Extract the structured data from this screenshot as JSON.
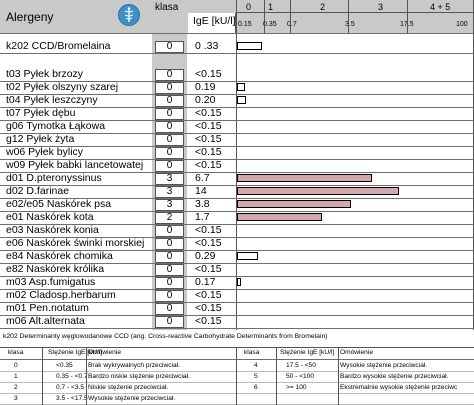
{
  "header": {
    "allergens_label": "Alergeny",
    "klasa_label": "klasa",
    "ige_label": "IgE [kU/l]",
    "class_numbers": [
      "0",
      "1",
      "2",
      "3",
      "4 + 5"
    ],
    "scale_ticks": [
      "0.15",
      "0.35",
      "0.7",
      "3.5",
      "17.5",
      "100"
    ]
  },
  "rows": [
    {
      "name": "k202  CCD/Bromelaina",
      "klasa": "0",
      "value": "0 .33",
      "level": 0.33,
      "highlight": false
    },
    {
      "name": "t03  Pyłek brzozy",
      "klasa": "0",
      "value": "<0.15",
      "level": 0,
      "highlight": false
    },
    {
      "name": "t02  Pyłek olszyny szarej",
      "klasa": "0",
      "value": "0.19",
      "level": 0.19,
      "highlight": false
    },
    {
      "name": "t04  Pyłek leszczyny",
      "klasa": "0",
      "value": "0.20",
      "level": 0.2,
      "highlight": false
    },
    {
      "name": "t07  Pyłek dębu",
      "klasa": "0",
      "value": "<0.15",
      "level": 0,
      "highlight": false
    },
    {
      "name": "g06  Tymotka Łąkowa",
      "klasa": "0",
      "value": "<0.15",
      "level": 0,
      "highlight": false
    },
    {
      "name": "g12  Pyłek żyta",
      "klasa": "0",
      "value": "<0.15",
      "level": 0,
      "highlight": false
    },
    {
      "name": "w06  Pyłek bylicy",
      "klasa": "0",
      "value": "<0.15",
      "level": 0,
      "highlight": false
    },
    {
      "name": "w09  Pyłek babki lancetowatej",
      "klasa": "0",
      "value": "<0.15",
      "level": 0,
      "highlight": false
    },
    {
      "name": "d01  D.pteronyssinus",
      "klasa": "3",
      "value": "6.7",
      "level": 6.7,
      "highlight": true
    },
    {
      "name": "d02  D.farinae",
      "klasa": "3",
      "value": "14",
      "level": 14,
      "highlight": true
    },
    {
      "name": "e02/e05  Naskórek psa",
      "klasa": "3",
      "value": "3.8",
      "level": 3.8,
      "highlight": true
    },
    {
      "name": "e01  Naskórek kota",
      "klasa": "2",
      "value": "1.7",
      "level": 1.7,
      "highlight": true
    },
    {
      "name": "e03  Naskórek konia",
      "klasa": "0",
      "value": "<0.15",
      "level": 0,
      "highlight": false
    },
    {
      "name": "e06  Naskórek świnki morskiej",
      "klasa": "0",
      "value": "<0.15",
      "level": 0,
      "highlight": false
    },
    {
      "name": "e84  Naskórek chomika",
      "klasa": "0",
      "value": "0.29",
      "level": 0.29,
      "highlight": false
    },
    {
      "name": "e82  Naskórek królika",
      "klasa": "0",
      "value": "<0.15",
      "level": 0,
      "highlight": false
    },
    {
      "name": "m03  Asp.fumigatus",
      "klasa": "0",
      "value": "0.17",
      "level": 0.17,
      "highlight": false
    },
    {
      "name": "m02  Cladosp.herbarum",
      "klasa": "0",
      "value": "<0.15",
      "level": 0,
      "highlight": false
    },
    {
      "name": "m01  Pen.notatum",
      "klasa": "0",
      "value": "<0.15",
      "level": 0,
      "highlight": false
    },
    {
      "name": "m06  Alt.alternata",
      "klasa": "0",
      "value": "<0.15",
      "level": 0,
      "highlight": false
    }
  ],
  "footnote": "k202  Determinanty węglowodanowe CCD (ang. Cross-reactive Carbohydrate Determinants from Bromelain)",
  "legend": {
    "headers": [
      "klasa",
      "Stężenie IgE [kU/l]",
      "Omówienie",
      "klasa",
      "Stężenie IgE [kU/l]",
      "Omówienie"
    ],
    "left_rows": [
      [
        "0",
        "<0.35",
        "Brak wykrywalnych przeciwciał."
      ],
      [
        "1",
        "0.35 - <0.7",
        "Bardzo niskie stężenie przeciwciał."
      ],
      [
        "2",
        "0.7 - <3.5",
        "Niskie stężenie przeciwciał."
      ],
      [
        "3",
        "3.5 - <17.5",
        "Wysokie stężenie przeciwciał."
      ]
    ],
    "right_rows": [
      [
        "4",
        "17.5 - <50",
        "Wysokie stężenie przeciwciał."
      ],
      [
        "5",
        "50 - <100",
        "Bardzo wysokie stężenie przeciwciał."
      ],
      [
        "6",
        ">= 100",
        "Ekstremalnie wysokie stężenie przeciwc"
      ],
      [
        "",
        "",
        ""
      ]
    ]
  },
  "colors": {
    "header_grey": "#c9c9c9",
    "bar_highlight": "#d4a8ab",
    "logo_blue": "#3f8fc9"
  },
  "logo_icon": "caduceus-icon"
}
